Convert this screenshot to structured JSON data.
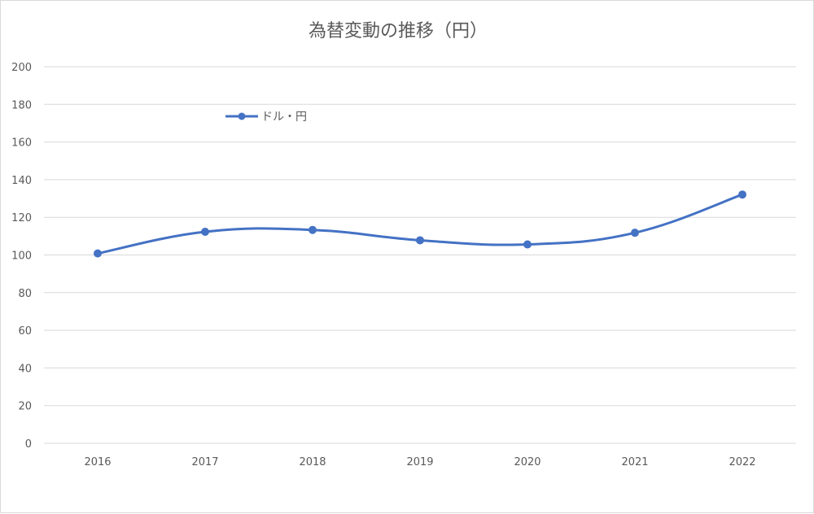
{
  "chart_data": {
    "type": "line",
    "title": "為替変動の推移（円）",
    "categories": [
      "2016",
      "2017",
      "2018",
      "2019",
      "2020",
      "2021",
      "2022"
    ],
    "series": [
      {
        "name": "ドル・円",
        "values": [
          100.8,
          112.3,
          113.3,
          107.8,
          105.6,
          111.8,
          132.1
        ],
        "color": "#4472C4"
      }
    ],
    "ylim": [
      0,
      200
    ],
    "yticks": [
      0,
      20,
      40,
      60,
      80,
      100,
      120,
      140,
      160,
      180,
      200
    ],
    "smooth": true,
    "markers": true,
    "grid": true,
    "legend": "top-left"
  }
}
